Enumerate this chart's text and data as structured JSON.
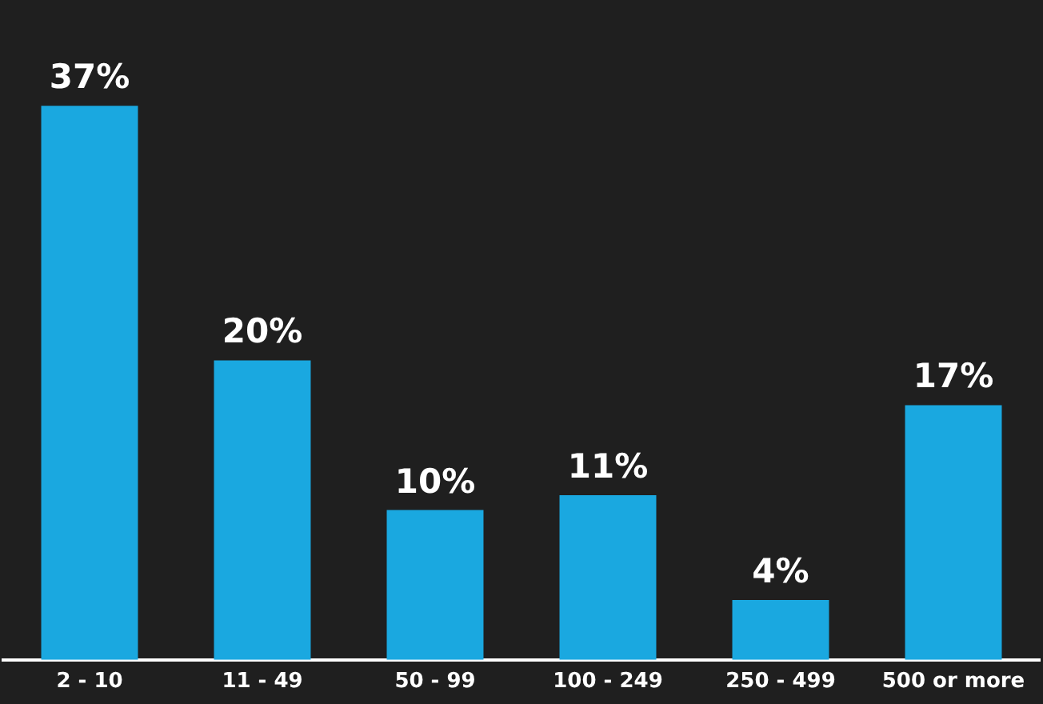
{
  "chart_data": {
    "type": "bar",
    "categories": [
      "2 - 10",
      "11 - 49",
      "50 - 99",
      "100 - 249",
      "250 - 499",
      "500 or more"
    ],
    "values": [
      37,
      20,
      10,
      11,
      4,
      17
    ],
    "value_labels": [
      "37%",
      "20%",
      "10%",
      "11%",
      "4%",
      "17%"
    ],
    "color": "#1aa8e0",
    "grid": false,
    "legend": false
  }
}
